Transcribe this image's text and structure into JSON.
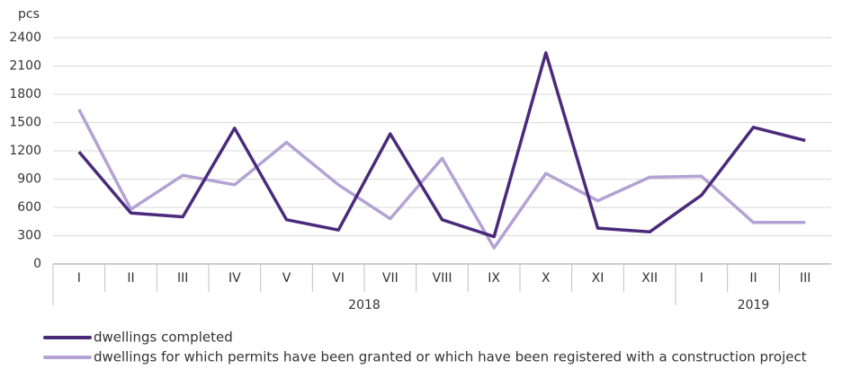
{
  "chart_data": {
    "type": "line",
    "y_unit": "pcs",
    "categories": [
      "I",
      "II",
      "III",
      "IV",
      "V",
      "VI",
      "VII",
      "VIII",
      "IX",
      "X",
      "XI",
      "XII",
      "I",
      "II",
      "III"
    ],
    "x_groups": [
      {
        "label": "2018",
        "count": 12
      },
      {
        "label": "2019",
        "count": 3
      }
    ],
    "series": [
      {
        "name": "dwellings completed",
        "color": "#4b2a7b",
        "values": [
          1190,
          540,
          500,
          1440,
          470,
          360,
          1380,
          470,
          290,
          2240,
          380,
          340,
          730,
          1450,
          1310
        ]
      },
      {
        "name": "dwellings for which permits have been granted or which have been registered with a construction project",
        "color": "#b4a2d4",
        "values": [
          1640,
          580,
          940,
          840,
          1290,
          840,
          480,
          1120,
          170,
          960,
          670,
          920,
          930,
          440,
          440
        ]
      }
    ],
    "ylim": [
      0,
      2400
    ],
    "yticks": [
      0,
      300,
      600,
      900,
      1200,
      1500,
      1800,
      2100,
      2400
    ],
    "grid": true
  }
}
